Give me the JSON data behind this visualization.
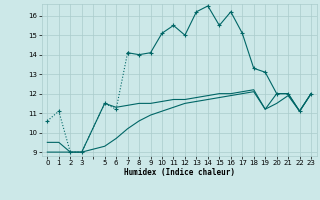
{
  "xlabel": "Humidex (Indice chaleur)",
  "background_color": "#cce8e8",
  "grid_color": "#aacccc",
  "line_color": "#006666",
  "xlim": [
    -0.5,
    23.5
  ],
  "ylim": [
    8.8,
    16.6
  ],
  "yticks": [
    9,
    10,
    11,
    12,
    13,
    14,
    15,
    16
  ],
  "xtick_labels": [
    "0",
    "1",
    "2",
    "3",
    "",
    "5",
    "6",
    "7",
    "8",
    "9",
    "10",
    "11",
    "12",
    "13",
    "14",
    "15",
    "16",
    "17",
    "18",
    "19",
    "20",
    "21",
    "22",
    "23"
  ],
  "line1_x": [
    0,
    1,
    2,
    3,
    5,
    6,
    7,
    8,
    9,
    10,
    11,
    12,
    13,
    14,
    15,
    16,
    17,
    18,
    19,
    20,
    21,
    22,
    23
  ],
  "line1_y": [
    10.6,
    11.1,
    9.0,
    9.0,
    11.5,
    11.2,
    14.1,
    14.0,
    14.1,
    15.1,
    15.5,
    15.0,
    16.2,
    16.5,
    15.5,
    16.2,
    15.1,
    13.3,
    13.1,
    12.0,
    12.0,
    11.1,
    12.0
  ],
  "line1_dotted_x": [
    0,
    1,
    2,
    3,
    5,
    6,
    7
  ],
  "line1_dotted_y": [
    10.6,
    11.1,
    9.0,
    9.0,
    11.5,
    11.2,
    14.1
  ],
  "line2_x": [
    0,
    1,
    2,
    3,
    5,
    6,
    7,
    8,
    9,
    10,
    11,
    12,
    13,
    14,
    15,
    16,
    17,
    18,
    19,
    20,
    21,
    22,
    23
  ],
  "line2_y": [
    9.0,
    9.0,
    9.0,
    9.0,
    9.3,
    9.7,
    10.2,
    10.6,
    10.9,
    11.1,
    11.3,
    11.5,
    11.6,
    11.7,
    11.8,
    11.9,
    12.0,
    12.1,
    11.2,
    11.5,
    11.9,
    11.1,
    12.0
  ],
  "line3_x": [
    0,
    1,
    2,
    3,
    5,
    6,
    7,
    8,
    9,
    10,
    11,
    12,
    13,
    14,
    15,
    16,
    17,
    18,
    19,
    20,
    21,
    22,
    23
  ],
  "line3_y": [
    9.5,
    9.5,
    9.0,
    9.0,
    11.5,
    11.3,
    11.4,
    11.5,
    11.5,
    11.6,
    11.7,
    11.7,
    11.8,
    11.9,
    12.0,
    12.0,
    12.1,
    12.2,
    11.2,
    12.0,
    12.0,
    11.1,
    12.0
  ]
}
